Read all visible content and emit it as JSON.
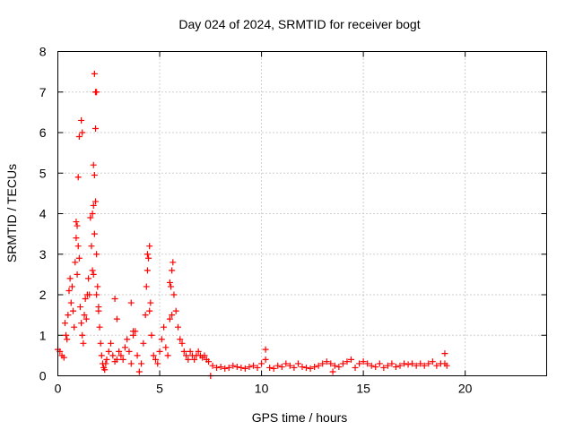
{
  "chart_data": {
    "type": "scatter",
    "title": "Day 024 of 2024, SRMTID for receiver bogt",
    "xlabel": "GPS time / hours",
    "ylabel": "SRMTID / TECUs",
    "xlim": [
      0,
      24
    ],
    "ylim": [
      0,
      8
    ],
    "xticks": [
      0,
      5,
      10,
      15,
      20
    ],
    "yticks": [
      0,
      1,
      2,
      3,
      4,
      5,
      6,
      7,
      8
    ],
    "grid": true,
    "marker": "+",
    "color": "#ff0000",
    "series": [
      {
        "name": "SRMTID",
        "x": [
          0.0,
          0.1,
          0.2,
          0.3,
          0.35,
          0.4,
          0.45,
          0.5,
          0.55,
          0.6,
          0.65,
          0.7,
          0.75,
          0.8,
          0.85,
          0.9,
          0.95,
          1.0,
          1.05,
          1.1,
          1.15,
          1.2,
          1.25,
          1.3,
          1.35,
          1.4,
          1.45,
          1.5,
          1.55,
          1.6,
          1.65,
          1.7,
          1.75,
          1.8,
          1.85,
          1.9,
          1.95,
          2.0,
          2.05,
          2.1,
          2.15,
          2.2,
          2.25,
          2.3,
          2.35,
          2.4,
          2.5,
          2.6,
          2.7,
          2.8,
          2.9,
          3.0,
          3.1,
          3.2,
          3.3,
          3.4,
          3.5,
          3.6,
          3.7,
          3.8,
          3.9,
          4.0,
          4.1,
          4.2,
          4.3,
          4.35,
          4.4,
          4.45,
          4.5,
          4.55,
          4.6,
          4.7,
          4.8,
          4.9,
          5.0,
          5.1,
          5.2,
          5.3,
          5.4,
          5.5,
          5.55,
          5.6,
          5.65,
          5.7,
          5.8,
          5.9,
          6.0,
          6.1,
          6.2,
          6.3,
          6.4,
          6.5,
          6.6,
          6.7,
          6.8,
          6.9,
          7.0,
          7.1,
          7.2,
          7.3,
          7.4,
          7.5,
          7.6,
          7.8,
          8.0,
          8.2,
          8.4,
          8.6,
          8.8,
          9.0,
          9.2,
          9.4,
          9.6,
          9.8,
          10.0,
          10.2,
          10.4,
          10.6,
          10.8,
          11.0,
          11.2,
          11.4,
          11.6,
          11.8,
          12.0,
          12.2,
          12.4,
          12.6,
          12.8,
          13.0,
          13.2,
          13.4,
          13.6,
          13.8,
          14.0,
          14.2,
          14.4,
          14.6,
          14.8,
          15.0,
          15.2,
          15.4,
          15.6,
          15.8,
          16.0,
          16.2,
          16.4,
          16.6,
          16.8,
          17.0,
          17.2,
          17.4,
          17.6,
          17.8,
          18.0,
          18.2,
          18.4,
          18.6,
          18.8,
          19.0,
          19.1,
          1.15,
          1.2,
          1.8,
          1.85,
          1.9,
          1.75,
          1.8,
          1.85,
          1.0,
          1.05,
          0.9,
          0.95,
          1.7,
          1.75,
          1.9,
          2.0,
          4.4,
          4.5,
          5.5,
          5.6,
          2.8,
          2.9,
          3.6,
          3.7,
          10.2,
          13.5,
          19.0
        ],
        "y": [
          0.65,
          0.6,
          0.5,
          0.45,
          1.3,
          1.0,
          0.9,
          1.5,
          2.1,
          2.4,
          1.8,
          2.2,
          1.6,
          1.2,
          2.8,
          3.8,
          2.5,
          3.2,
          2.9,
          1.7,
          1.3,
          1.0,
          0.8,
          1.5,
          1.9,
          1.4,
          2.0,
          2.4,
          2.0,
          3.9,
          3.2,
          2.6,
          4.2,
          3.5,
          4.3,
          3.0,
          2.2,
          1.6,
          1.2,
          0.8,
          0.5,
          0.3,
          0.2,
          0.15,
          0.3,
          0.4,
          0.6,
          0.8,
          0.5,
          0.35,
          0.4,
          0.6,
          0.5,
          0.4,
          0.7,
          0.9,
          0.6,
          0.3,
          1.0,
          1.1,
          0.5,
          0.1,
          0.3,
          0.8,
          1.5,
          2.2,
          2.6,
          2.9,
          3.2,
          1.8,
          1.0,
          0.5,
          0.4,
          0.3,
          0.6,
          0.9,
          1.2,
          0.7,
          0.5,
          1.4,
          2.2,
          2.6,
          2.8,
          2.0,
          1.6,
          1.2,
          0.9,
          0.8,
          0.6,
          0.5,
          0.4,
          0.6,
          0.5,
          0.4,
          0.5,
          0.6,
          0.5,
          0.45,
          0.5,
          0.4,
          0.35,
          0.0,
          0.25,
          0.2,
          0.22,
          0.18,
          0.2,
          0.25,
          0.22,
          0.2,
          0.18,
          0.22,
          0.25,
          0.2,
          0.3,
          0.4,
          0.2,
          0.18,
          0.25,
          0.22,
          0.3,
          0.25,
          0.2,
          0.3,
          0.22,
          0.2,
          0.18,
          0.22,
          0.25,
          0.3,
          0.35,
          0.3,
          0.25,
          0.22,
          0.3,
          0.35,
          0.4,
          0.2,
          0.3,
          0.35,
          0.3,
          0.25,
          0.22,
          0.3,
          0.2,
          0.25,
          0.3,
          0.22,
          0.25,
          0.3,
          0.28,
          0.3,
          0.25,
          0.3,
          0.25,
          0.3,
          0.35,
          0.25,
          0.3,
          0.3,
          0.25,
          6.3,
          6.0,
          7.45,
          7.0,
          7.0,
          5.2,
          4.95,
          6.1,
          4.9,
          5.9,
          3.4,
          3.7,
          4.0,
          2.5,
          2.0,
          1.7,
          3.0,
          1.6,
          2.3,
          1.5,
          1.9,
          1.4,
          1.8,
          1.1,
          0.65,
          0.1,
          0.55
        ]
      }
    ]
  }
}
